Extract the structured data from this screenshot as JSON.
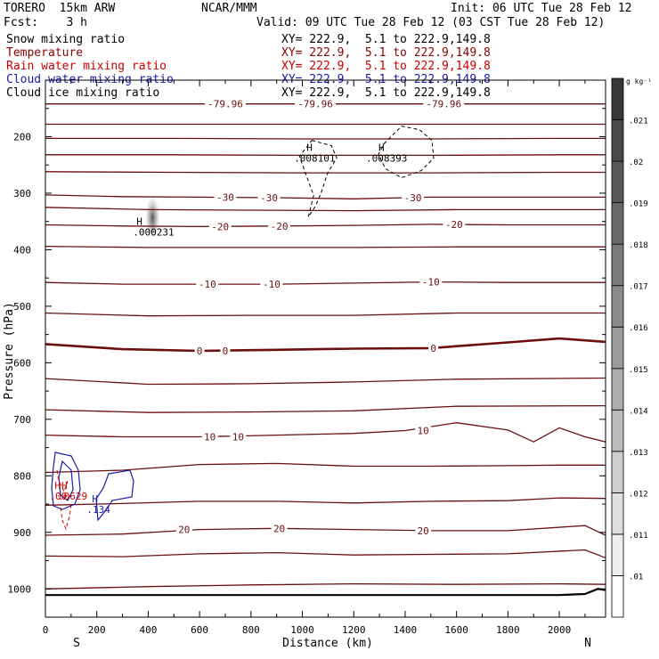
{
  "header": {
    "model": "TORERO  15km ARW",
    "center": "NCAR/MMM",
    "init": "Init: 06 UTC Tue 28 Feb 12",
    "fcst": "Fcst:    3 h",
    "valid": "Valid: 09 UTC Tue 28 Feb 12 (03 CST Tue 28 Feb 12)"
  },
  "legend": [
    {
      "name": "Snow mixing ratio",
      "xy": "XY= 222.9,  5.1 to 222.9,149.8",
      "color": "#000000"
    },
    {
      "name": "Temperature",
      "xy": "XY= 222.9,  5.1 to 222.9,149.8",
      "color": "#8b0000"
    },
    {
      "name": "Rain water mixing ratio",
      "xy": "XY= 222.9,  5.1 to 222.9,149.8",
      "color": "#cc0000"
    },
    {
      "name": "Cloud water mixing ratio",
      "xy": "XY= 222.9,  5.1 to 222.9,149.8",
      "color": "#1a1aaa"
    },
    {
      "name": "Cloud ice mixing ratio",
      "xy": "XY= 222.9,  5.1 to 222.9,149.8",
      "color": "#000000"
    }
  ],
  "chart_data": {
    "type": "contour",
    "xlabel": "Distance (km)",
    "ylabel": "Pressure (hPa)",
    "xlim": [
      0,
      2180
    ],
    "ylim": [
      1050,
      100
    ],
    "x_ticks": [
      0,
      200,
      400,
      600,
      800,
      1000,
      1200,
      1400,
      1600,
      1800,
      2000
    ],
    "y_ticks": [
      200,
      300,
      400,
      500,
      600,
      700,
      800,
      900,
      1000
    ],
    "x_end_labels": {
      "left": "S",
      "right": "N"
    },
    "colorbar": {
      "unit": "g kg⁻¹",
      "levels": [
        ".01",
        ".011",
        ".012",
        ".013",
        ".014",
        ".015",
        ".016",
        ".017",
        ".018",
        ".019",
        ".02",
        ".021"
      ]
    },
    "temperature_contours": [
      {
        "label": "-79.96",
        "x": [
          0,
          200,
          400,
          600,
          800,
          1000,
          1200,
          1400,
          1600,
          1800,
          2000,
          2180
        ],
        "p": [
          142,
          142,
          142,
          142,
          142,
          142,
          142,
          142,
          142,
          142,
          142,
          142
        ]
      },
      {
        "label": "",
        "x": [
          0,
          500,
          1000,
          1500,
          2000,
          2180
        ],
        "p": [
          178,
          178,
          178,
          178,
          178,
          178
        ]
      },
      {
        "label": "",
        "x": [
          0,
          500,
          1000,
          1500,
          2000,
          2180
        ],
        "p": [
          203,
          203,
          204,
          204,
          203,
          203
        ]
      },
      {
        "label": "",
        "x": [
          0,
          500,
          1000,
          1500,
          2000,
          2180
        ],
        "p": [
          232,
          232,
          233,
          233,
          232,
          232
        ]
      },
      {
        "label": "",
        "x": [
          0,
          500,
          1000,
          1500,
          2000,
          2180
        ],
        "p": [
          262,
          263,
          264,
          264,
          263,
          263
        ]
      },
      {
        "label": "-30",
        "x": [
          0,
          300,
          600,
          900,
          1200,
          1500,
          1800,
          2180
        ],
        "p": [
          303,
          306,
          307,
          308,
          310,
          307,
          307,
          307
        ]
      },
      {
        "label": "",
        "x": [
          0,
          400,
          800,
          1200,
          1600,
          2180
        ],
        "p": [
          325,
          329,
          330,
          331,
          329,
          329
        ]
      },
      {
        "label": "-20",
        "x": [
          0,
          300,
          600,
          900,
          1200,
          1500,
          1800,
          2180
        ],
        "p": [
          356,
          358,
          359,
          358,
          357,
          355,
          356,
          356
        ]
      },
      {
        "label": "",
        "x": [
          0,
          400,
          800,
          1200,
          1600,
          2180
        ],
        "p": [
          394,
          396,
          396,
          396,
          395,
          395
        ]
      },
      {
        "label": "-10",
        "x": [
          0,
          300,
          600,
          900,
          1200,
          1500,
          1800,
          2180
        ],
        "p": [
          458,
          461,
          461,
          461,
          459,
          457,
          458,
          458
        ]
      },
      {
        "label": "",
        "x": [
          0,
          400,
          800,
          1200,
          1600,
          2180
        ],
        "p": [
          512,
          517,
          516,
          516,
          512,
          512
        ]
      },
      {
        "label": "0",
        "x": [
          0,
          300,
          600,
          900,
          1200,
          1500,
          1800,
          2000,
          2180
        ],
        "p": [
          567,
          576,
          579,
          577,
          575,
          574,
          564,
          557,
          563
        ]
      },
      {
        "label": "",
        "x": [
          0,
          400,
          800,
          1200,
          1600,
          2180
        ],
        "p": [
          628,
          638,
          637,
          634,
          629,
          627
        ]
      },
      {
        "label": "",
        "x": [
          0,
          400,
          800,
          1200,
          1600,
          2180
        ],
        "p": [
          683,
          688,
          687,
          685,
          677,
          676
        ]
      },
      {
        "label": "10",
        "x": [
          0,
          300,
          600,
          900,
          1200,
          1400,
          1600,
          1800,
          1900,
          2000,
          2100,
          2180
        ],
        "p": [
          728,
          731,
          731,
          728,
          725,
          720,
          706,
          719,
          740,
          715,
          731,
          740
        ]
      },
      {
        "label": "",
        "x": [
          0,
          300,
          600,
          900,
          1200,
          1500,
          1800,
          2000,
          2180
        ],
        "p": [
          794,
          790,
          780,
          778,
          783,
          783,
          782,
          781,
          781
        ]
      },
      {
        "label": "",
        "x": [
          0,
          300,
          600,
          900,
          1200,
          1500,
          1800,
          2000,
          2180
        ],
        "p": [
          852,
          849,
          845,
          845,
          848,
          845,
          844,
          839,
          840
        ]
      },
      {
        "label": "20",
        "x": [
          0,
          300,
          600,
          900,
          1200,
          1500,
          1800,
          2100,
          2180
        ],
        "p": [
          905,
          903,
          895,
          893,
          895,
          897,
          897,
          888,
          905
        ]
      },
      {
        "label": "",
        "x": [
          0,
          300,
          600,
          900,
          1200,
          1500,
          1800,
          2100,
          2180
        ],
        "p": [
          942,
          943,
          938,
          936,
          940,
          939,
          938,
          931,
          945
        ]
      },
      {
        "label": "",
        "x": [
          0,
          400,
          800,
          1200,
          1600,
          2000,
          2180
        ],
        "p": [
          1000,
          996,
          993,
          991,
          992,
          991,
          992
        ]
      }
    ],
    "temperature_labels": [
      {
        "text": "-79.96",
        "x": 700,
        "p": 142
      },
      {
        "text": "-79.96",
        "x": 1050,
        "p": 142
      },
      {
        "text": "-79.96",
        "x": 1550,
        "p": 142
      },
      {
        "text": "-30",
        "x": 700,
        "p": 307
      },
      {
        "text": "-30",
        "x": 870,
        "p": 308
      },
      {
        "text": "-30",
        "x": 1430,
        "p": 308
      },
      {
        "text": "-20",
        "x": 680,
        "p": 359
      },
      {
        "text": "-20",
        "x": 910,
        "p": 358
      },
      {
        "text": "-20",
        "x": 1590,
        "p": 355
      },
      {
        "text": "-10",
        "x": 630,
        "p": 461
      },
      {
        "text": "-10",
        "x": 880,
        "p": 461
      },
      {
        "text": "-10",
        "x": 1500,
        "p": 457
      },
      {
        "text": "0",
        "x": 600,
        "p": 579
      },
      {
        "text": "0",
        "x": 700,
        "p": 579
      },
      {
        "text": "0",
        "x": 1510,
        "p": 574
      },
      {
        "text": "10",
        "x": 640,
        "p": 731
      },
      {
        "text": "10",
        "x": 750,
        "p": 731
      },
      {
        "text": "10",
        "x": 1470,
        "p": 720
      },
      {
        "text": "20",
        "x": 540,
        "p": 895
      },
      {
        "text": "20",
        "x": 910,
        "p": 893
      },
      {
        "text": "20",
        "x": 1470,
        "p": 897
      }
    ],
    "cloud_ice_maxima": [
      {
        "label": "H",
        "value": ".008101",
        "x": 1030,
        "p": 238
      },
      {
        "label": "H",
        "value": ".008393",
        "x": 1310,
        "p": 238
      }
    ],
    "snow_maxima": [
      {
        "label": "H",
        "value": ".000231",
        "x": 410,
        "p": 375
      }
    ],
    "cloud_water_maxima": [
      {
        "label": "H",
        "value": ".134",
        "x": 230,
        "p": 866
      }
    ],
    "rain_water_maxima": [
      {
        "label": "H",
        "value": ".00",
        "x": 50,
        "p": 845
      },
      {
        "label": "H",
        "value": ".0629",
        "x": 90,
        "p": 845
      }
    ],
    "surface_pressure": {
      "x": [
        0,
        500,
        1000,
        1500,
        2000,
        2100,
        2150,
        2180
      ],
      "p": [
        1011,
        1011,
        1011,
        1011,
        1011,
        1009,
        1000,
        1002
      ]
    }
  }
}
